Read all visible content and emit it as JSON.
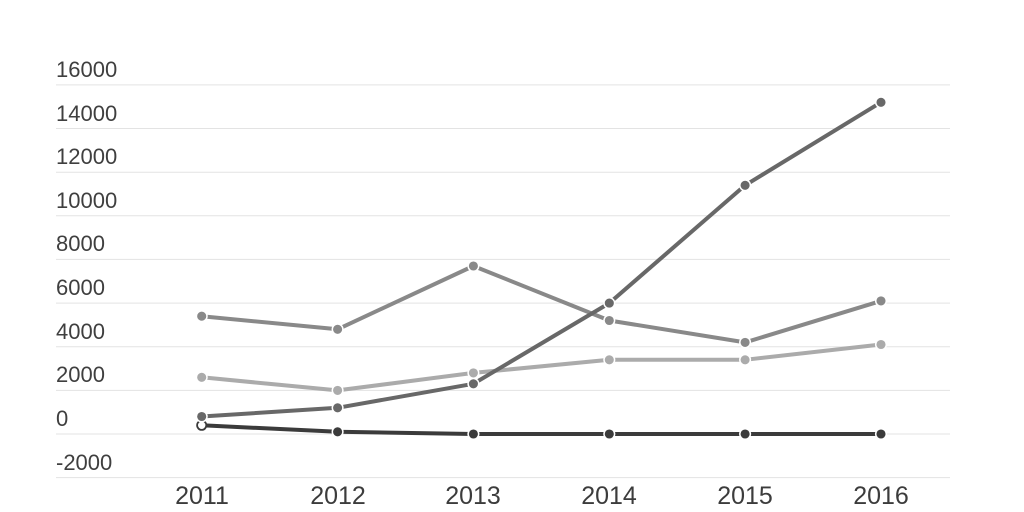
{
  "chart_data": {
    "type": "line",
    "title": "",
    "categories": [
      "2011",
      "2012",
      "2013",
      "2014",
      "2015",
      "2016"
    ],
    "series": [
      {
        "name": "black",
        "color": "#3b3b3b",
        "values": [
          400,
          100,
          0,
          0,
          0,
          0
        ],
        "marker_exception": {
          "index": 0,
          "fill": "#ffffff"
        }
      },
      {
        "name": "medium-gray",
        "color": "#898989",
        "values": [
          5400,
          4800,
          7700,
          5200,
          4200,
          6100
        ]
      },
      {
        "name": "light-gray",
        "color": "#ababab",
        "values": [
          2600,
          2000,
          2800,
          3400,
          3400,
          4100
        ]
      },
      {
        "name": "dark-gray",
        "color": "#686868",
        "values": [
          800,
          1200,
          2300,
          6000,
          11400,
          15200
        ]
      }
    ],
    "y_ticks": [
      16000,
      14000,
      12000,
      10000,
      8000,
      6000,
      4000,
      2000,
      0,
      -2000
    ],
    "ylim": [
      -2000,
      16000
    ],
    "x_axis_labels": [
      "2011",
      "2012",
      "2013",
      "2014",
      "2015",
      "2016"
    ],
    "grid": "horizontal-only",
    "legend": "none",
    "colors": {
      "gridline": "#e3e3e3",
      "axis_text": "#3f3f3f",
      "background": "#ffffff"
    }
  }
}
